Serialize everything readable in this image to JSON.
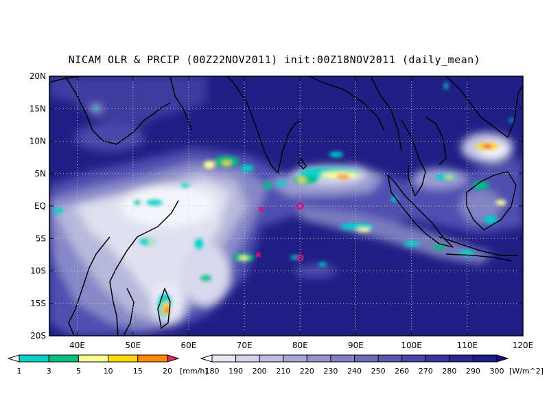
{
  "title": "NICAM OLR & PRCIP (00Z22NOV2011) init:00Z18NOV2011 (daily_mean)",
  "map": {
    "lon_range": [
      35,
      120
    ],
    "lat_range": [
      -20,
      20
    ],
    "lon_ticks": [
      {
        "v": 40,
        "label": "40E"
      },
      {
        "v": 50,
        "label": "50E"
      },
      {
        "v": 60,
        "label": "60E"
      },
      {
        "v": 70,
        "label": "70E"
      },
      {
        "v": 80,
        "label": "80E"
      },
      {
        "v": 90,
        "label": "90E"
      },
      {
        "v": 100,
        "label": "100E"
      },
      {
        "v": 110,
        "label": "110E"
      },
      {
        "v": 120,
        "label": "120E"
      }
    ],
    "lat_ticks": [
      {
        "v": 20,
        "label": "20N"
      },
      {
        "v": 15,
        "label": "15N"
      },
      {
        "v": 10,
        "label": "10N"
      },
      {
        "v": 5,
        "label": "5N"
      },
      {
        "v": 0,
        "label": "EQ"
      },
      {
        "v": -5,
        "label": "5S"
      },
      {
        "v": -10,
        "label": "10S"
      },
      {
        "v": -15,
        "label": "15S"
      },
      {
        "v": -20,
        "label": "20S"
      }
    ],
    "grid": true,
    "background_color": "#1f1f86"
  },
  "markers": [
    {
      "type": "x",
      "lon": 73,
      "lat": -0.5,
      "color": "#e0107a"
    },
    {
      "type": "x",
      "lon": 72.5,
      "lat": -7.5,
      "color": "#e0107a"
    },
    {
      "type": "circle",
      "lon": 80,
      "lat": 0,
      "color": "#e0107a"
    },
    {
      "type": "circle",
      "lon": 80,
      "lat": -8,
      "color": "#e0107a"
    }
  ],
  "precip_colorbar": {
    "labels": [
      "1",
      "3",
      "5",
      "10",
      "15",
      "20"
    ],
    "colors": [
      "#ffffff",
      "#00d2c8",
      "#00c080",
      "#ffff96",
      "#ffdc00",
      "#ff8c00",
      "#f02850"
    ],
    "unit": "[mm/h]"
  },
  "olr_colorbar": {
    "labels": [
      "180",
      "190",
      "200",
      "210",
      "220",
      "230",
      "240",
      "250",
      "260",
      "270",
      "280",
      "290",
      "300"
    ],
    "colors": [
      "#ffffff",
      "#e8e8f4",
      "#d4d4ea",
      "#bebee0",
      "#a8a8d6",
      "#9494cc",
      "#8080c2",
      "#6c6cb8",
      "#5858ae",
      "#4646a4",
      "#36369a",
      "#282890",
      "#1c1c86",
      "#10107a"
    ],
    "unit": "[W/m^2]"
  }
}
